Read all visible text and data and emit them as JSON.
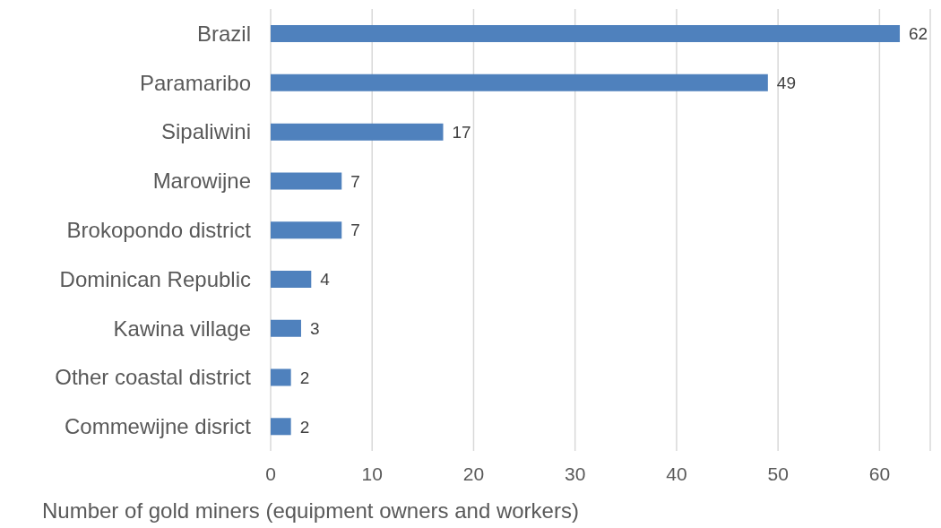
{
  "chart_data": {
    "type": "bar",
    "orientation": "horizontal",
    "xlabel": "Number of gold miners (equipment owners and workers)",
    "categories": [
      "Brazil",
      "Paramaribo",
      "Sipaliwini",
      "Marowijne",
      "Brokopondo district",
      "Dominican Republic",
      "Kawina village",
      "Other coastal district",
      "Commewijne disrict"
    ],
    "values": [
      62,
      49,
      17,
      7,
      7,
      4,
      3,
      2,
      2
    ],
    "color": "#4f81bd",
    "xlim": [
      0,
      65
    ],
    "xticks": [
      0,
      10,
      20,
      30,
      40,
      50,
      60
    ],
    "grid": "x",
    "data_labels": true
  }
}
